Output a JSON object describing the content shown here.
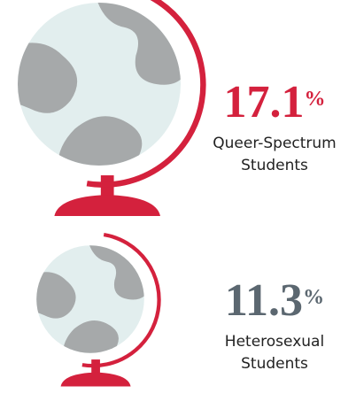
{
  "chart_data": {
    "type": "pictograph",
    "categories": [
      "Queer-Spectrum Students",
      "Heterosexual Students"
    ],
    "values": [
      17.1,
      11.3
    ],
    "unit": "%",
    "value_colors": [
      "#d4213d",
      "#5b6770"
    ],
    "globe_color": "#e2eeee",
    "land_color": "#a6a9aa",
    "stand_color": "#d4213d"
  }
}
